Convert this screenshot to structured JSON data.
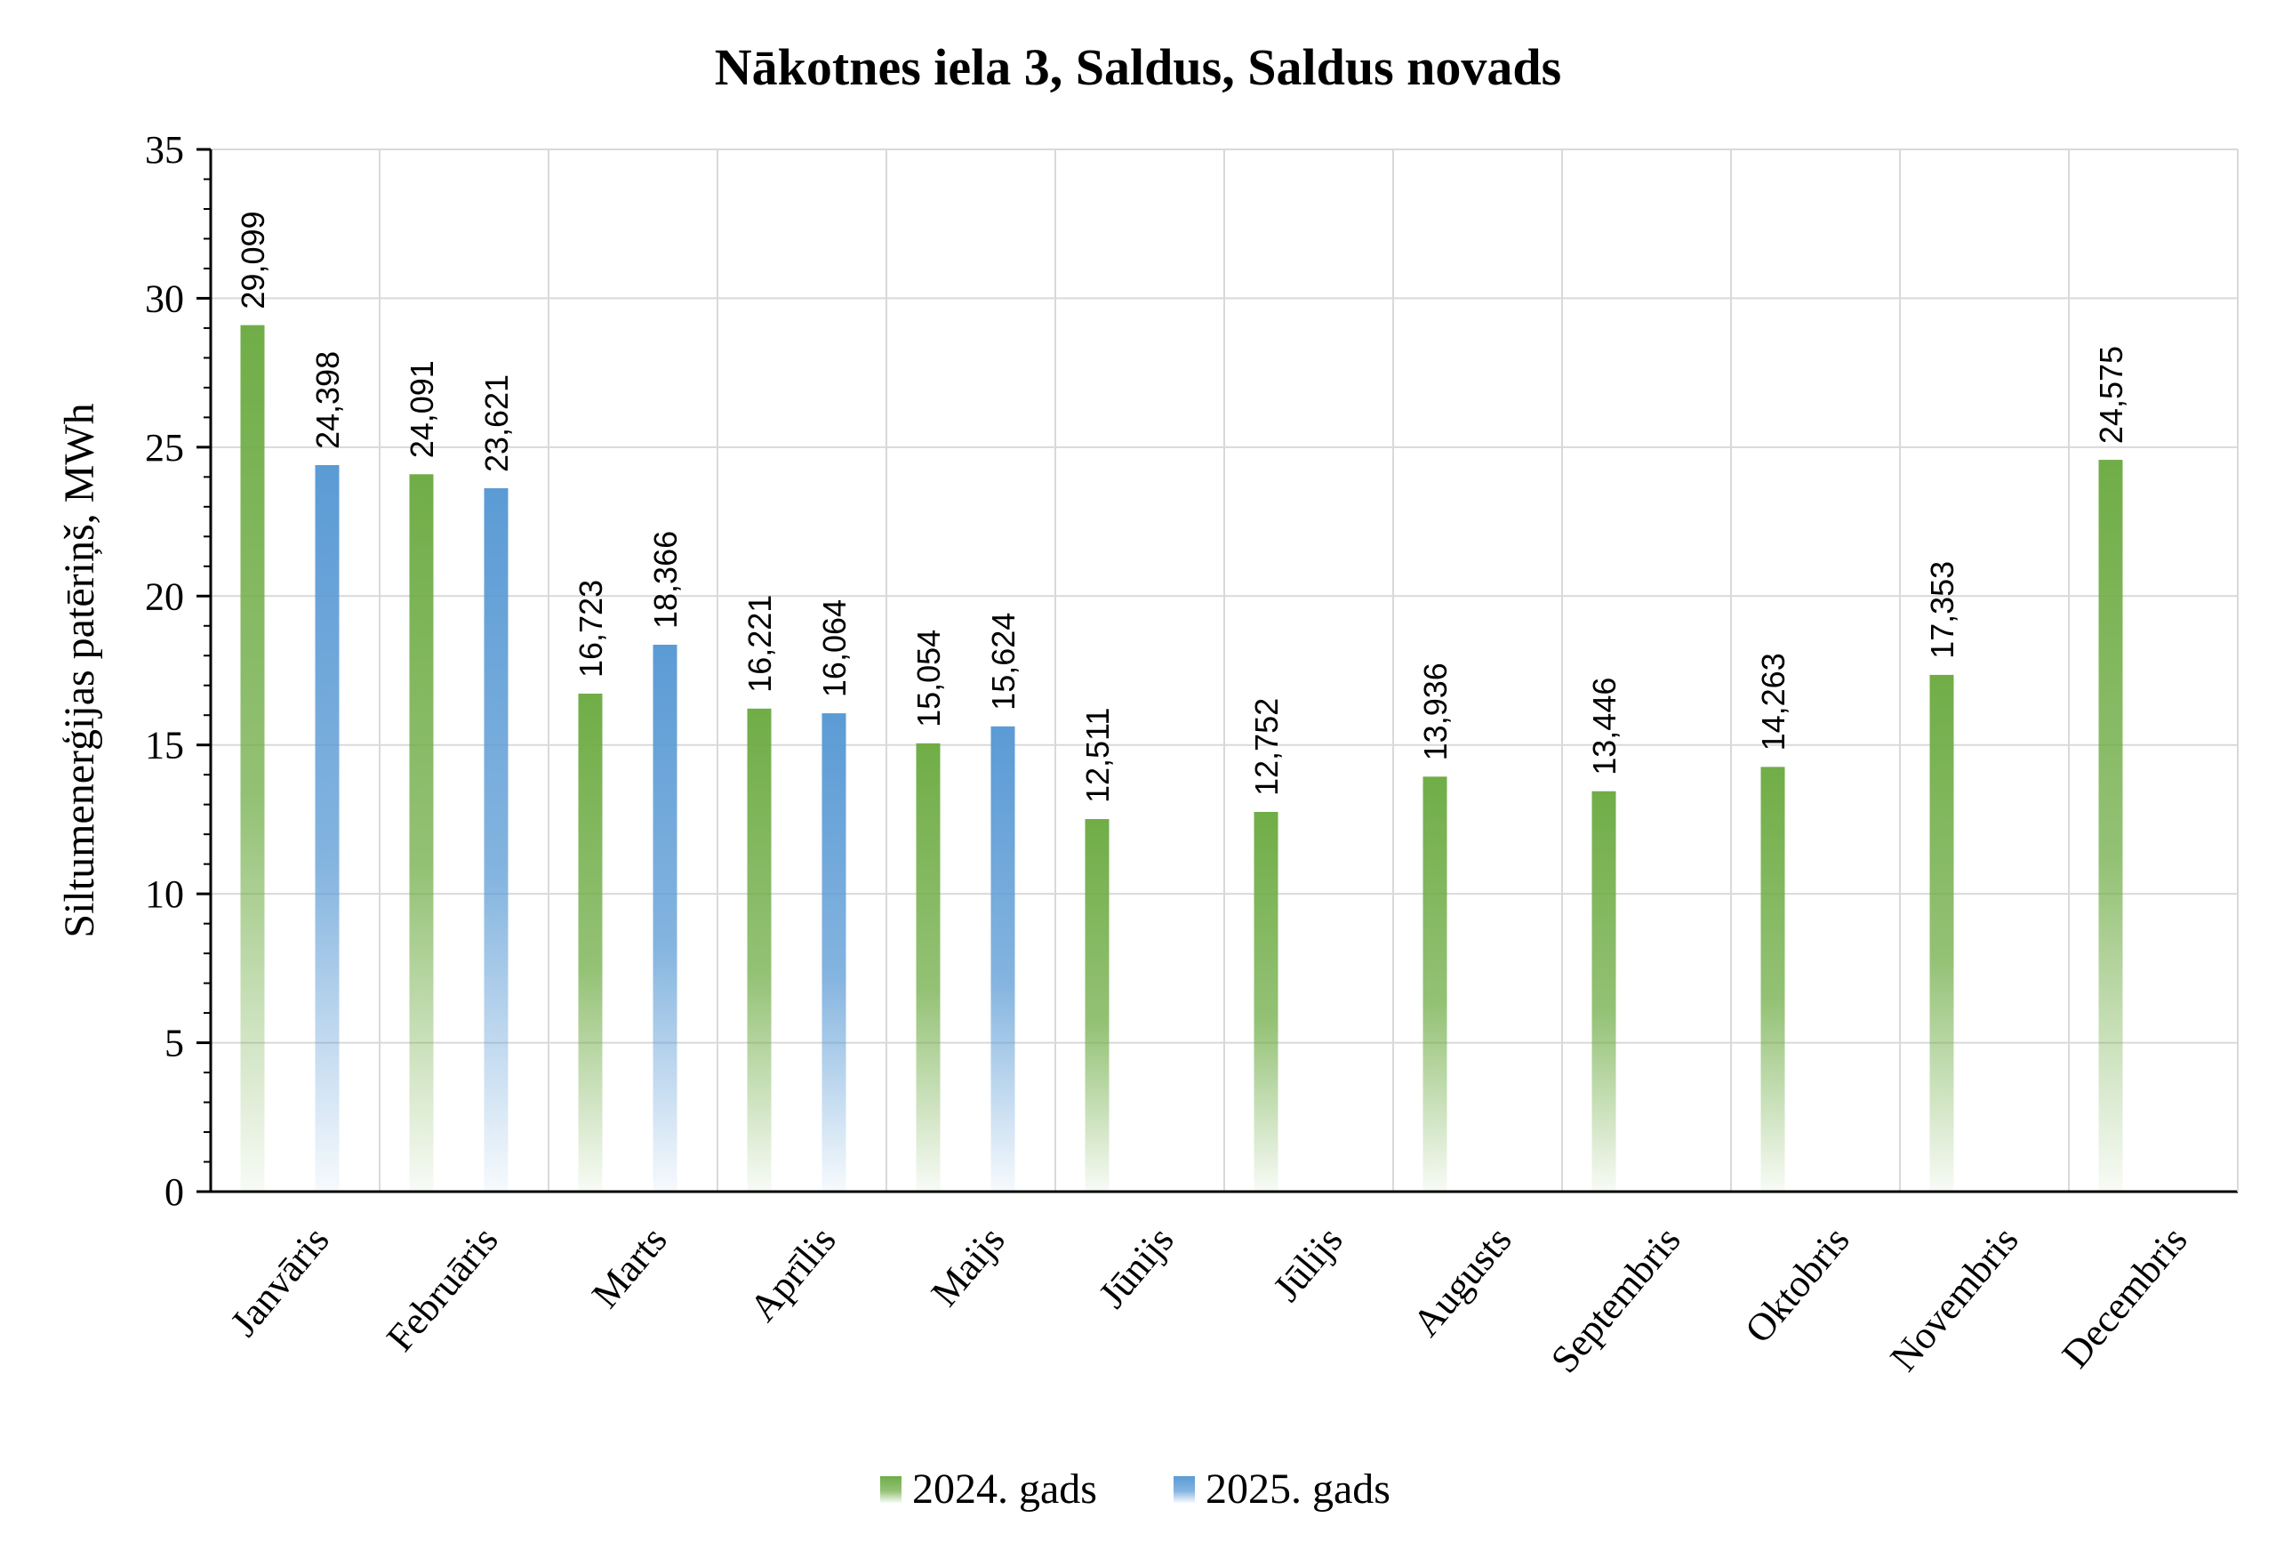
{
  "chart_data": {
    "type": "bar",
    "title": "Nākotnes iela 3, Saldus, Saldus novads",
    "ylabel": "Siltumenerģijas patēriņš, MWh",
    "xlabel": "",
    "ylim": [
      0,
      35
    ],
    "ytick_step": 5,
    "yticks": [
      "0",
      "5",
      "10",
      "15",
      "20",
      "25",
      "30",
      "35"
    ],
    "grid": true,
    "legend_position": "bottom",
    "categories": [
      "Janvāris",
      "Februāris",
      "Marts",
      "Aprīlis",
      "Maijs",
      "Jūnijs",
      "Jūlijs",
      "Augusts",
      "Septembris",
      "Oktobris",
      "Novembris",
      "Decembris"
    ],
    "series": [
      {
        "name": "2024. gads",
        "color": "#70ad47",
        "values": [
          29.099,
          24.091,
          16.723,
          16.221,
          15.054,
          12.511,
          12.752,
          13.936,
          13.446,
          14.263,
          17.353,
          24.575
        ],
        "labels": [
          "29,099",
          "24,091",
          "16,723",
          "16,221",
          "15,054",
          "12,511",
          "12,752",
          "13,936",
          "13,446",
          "14,263",
          "17,353",
          "24,575"
        ]
      },
      {
        "name": "2025. gads",
        "color": "#5b9bd5",
        "values": [
          24.398,
          23.621,
          18.366,
          16.064,
          15.624,
          null,
          null,
          null,
          null,
          null,
          null,
          null
        ],
        "labels": [
          "24,398",
          "23,621",
          "18,366",
          "16,064",
          "15,624",
          null,
          null,
          null,
          null,
          null,
          null,
          null
        ]
      }
    ]
  }
}
